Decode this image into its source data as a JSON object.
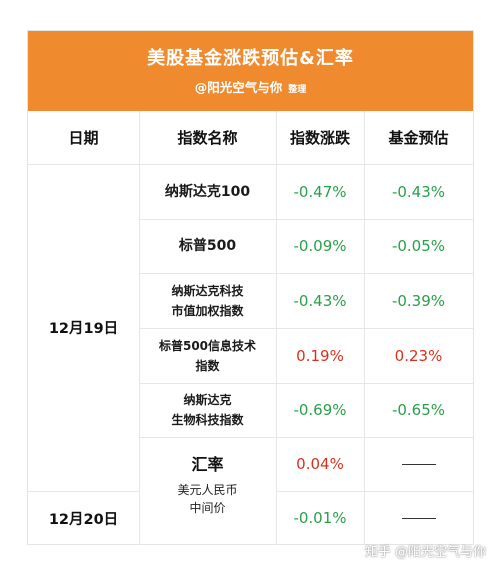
{
  "header": {
    "title": "美股基金涨跌预估&汇率",
    "author": "@阳光空气与你",
    "author_note": "整理"
  },
  "colors": {
    "header_bg": "#ef8a2f",
    "negative": "#2aa04a",
    "positive": "#d9301c"
  },
  "table": {
    "columns": [
      "日期",
      "指数名称",
      "指数涨跌",
      "基金预估"
    ],
    "rows": [
      {
        "name_line1": "纳斯达克100",
        "name_line2": "",
        "index_change": "-0.47%",
        "fund_estimate": "-0.43%"
      },
      {
        "name_line1": "标普500",
        "name_line2": "",
        "index_change": "-0.09%",
        "fund_estimate": "-0.05%"
      },
      {
        "name_line1": "纳斯达克科技",
        "name_line2": "市值加权指数",
        "index_change": "-0.43%",
        "fund_estimate": "-0.39%"
      },
      {
        "name_line1": "标普500信息技术",
        "name_line2": "指数",
        "index_change": "0.19%",
        "fund_estimate": "0.23%"
      },
      {
        "name_line1": "纳斯达克",
        "name_line2": "生物科技指数",
        "index_change": "-0.69%",
        "fund_estimate": "-0.65%"
      }
    ],
    "dates": [
      "12月19日",
      "12月20日"
    ],
    "fx": {
      "title": "汇率",
      "sub_line1": "美元人民币",
      "sub_line2": "中间价",
      "values": [
        "0.04%",
        "-0.01%"
      ],
      "fund_dash": "——"
    }
  },
  "watermark": "知乎 @阳光空气与你"
}
